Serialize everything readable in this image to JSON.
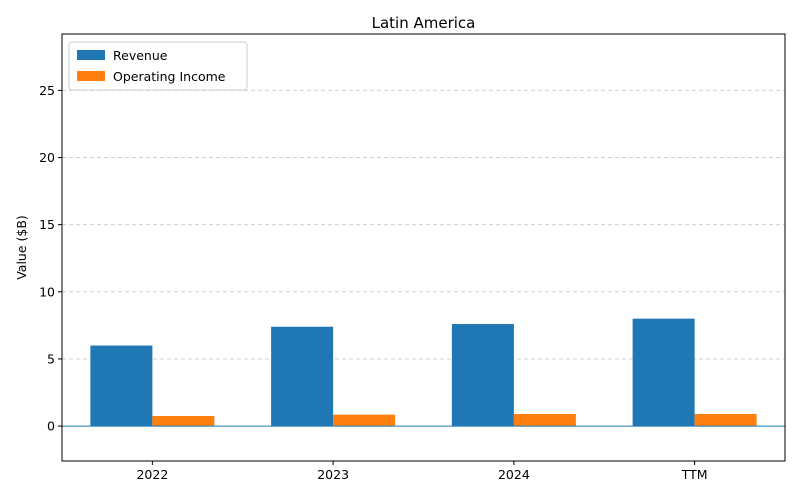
{
  "chart_data": {
    "type": "bar",
    "title": "Latin America",
    "xlabel": "",
    "ylabel": "Value ($B)",
    "categories": [
      "2022",
      "2023",
      "2024",
      "TTM"
    ],
    "series": [
      {
        "name": "Revenue",
        "values": [
          6.0,
          7.4,
          7.6,
          8.0
        ],
        "color": "#1f77b4"
      },
      {
        "name": "Operating Income",
        "values": [
          0.75,
          0.85,
          0.9,
          0.9
        ],
        "color": "#ff7f0e"
      }
    ],
    "ylim": [
      -2.6,
      29.2
    ],
    "yticks": [
      0,
      5,
      10,
      15,
      20,
      25
    ],
    "grid": "y-dashed",
    "legend_position": "top-left",
    "zero_line_color": "#1f77b4"
  }
}
